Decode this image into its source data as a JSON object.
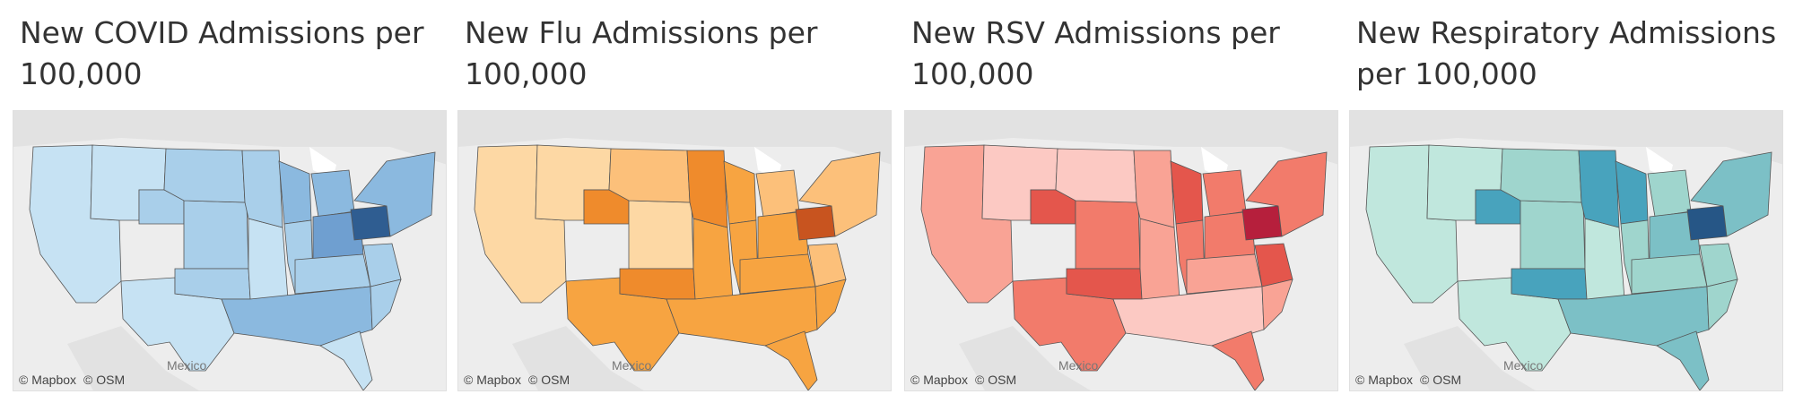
{
  "attribution": {
    "mapbox": "© Mapbox",
    "osm": "© OSM"
  },
  "place_labels": {
    "mexico": "Mexico"
  },
  "panels": [
    {
      "title": "New COVID Admissions per 100,000",
      "palette": [
        "#c6e2f3",
        "#a9cfea",
        "#8bb9df",
        "#6f9fd0",
        "#2f5d91"
      ],
      "levels": {
        "west": 0,
        "mtn_n": 0,
        "wy": 1,
        "ne_ks": 1,
        "dak": 1,
        "tx": 0,
        "ok": 1,
        "mo_ar": 0,
        "mn": 1,
        "wi": 2,
        "il": 1,
        "mi": 2,
        "in_oh": 3,
        "ky_tn": 1,
        "south": 2,
        "fl": 0,
        "va_nc": 1,
        "sc": 1,
        "pa": 4,
        "ny_ne": 2
      }
    },
    {
      "title": "New Flu Admissions per 100,000",
      "palette": [
        "#fdd8a4",
        "#fcc07a",
        "#f7a441",
        "#ef8b2c",
        "#c8541f"
      ],
      "levels": {
        "west": 0,
        "mtn_n": 0,
        "wy": 3,
        "ne_ks": 0,
        "dak": 1,
        "tx": 2,
        "ok": 3,
        "mo_ar": 2,
        "mn": 3,
        "wi": 2,
        "il": 2,
        "mi": 1,
        "in_oh": 2,
        "ky_tn": 2,
        "south": 2,
        "fl": 2,
        "va_nc": 1,
        "sc": 2,
        "pa": 4,
        "ny_ne": 1
      }
    },
    {
      "title": "New RSV Admissions per 100,000",
      "palette": [
        "#fcc9c3",
        "#f9a395",
        "#f27b6b",
        "#e4564c",
        "#b61f3c"
      ],
      "levels": {
        "west": 1,
        "mtn_n": 0,
        "wy": 3,
        "ne_ks": 2,
        "dak": 0,
        "tx": 2,
        "ok": 3,
        "mo_ar": 1,
        "mn": 1,
        "wi": 3,
        "il": 2,
        "mi": 2,
        "in_oh": 2,
        "ky_tn": 1,
        "south": 0,
        "fl": 2,
        "va_nc": 3,
        "sc": 1,
        "pa": 4,
        "ny_ne": 2
      }
    },
    {
      "title": "New Respiratory Admissions per 100,000",
      "palette": [
        "#c0e7dd",
        "#9fd5cd",
        "#7cc0c6",
        "#48a3bd",
        "#265686"
      ],
      "levels": {
        "west": 0,
        "mtn_n": 0,
        "wy": 3,
        "ne_ks": 1,
        "dak": 1,
        "tx": 0,
        "ok": 3,
        "mo_ar": 0,
        "mn": 3,
        "wi": 3,
        "il": 1,
        "mi": 1,
        "in_oh": 2,
        "ky_tn": 1,
        "south": 2,
        "fl": 2,
        "va_nc": 1,
        "sc": 1,
        "pa": 4,
        "ny_ne": 2
      }
    }
  ]
}
